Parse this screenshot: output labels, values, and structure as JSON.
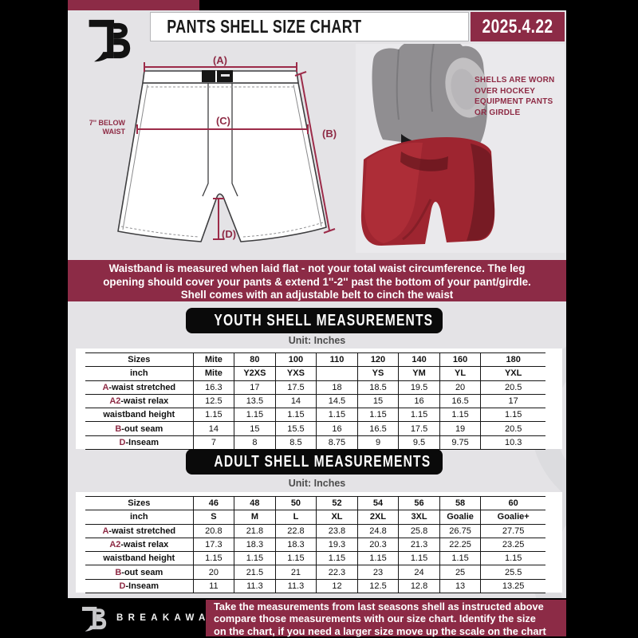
{
  "header": {
    "title": "PANTS SHELL SIZE CHART",
    "date": "2025.4.22"
  },
  "diagram": {
    "label_a": "(A)",
    "label_b": "(B)",
    "label_c": "(C)",
    "label_d": "(D)",
    "below_waist": "7'' BELOW\nWAIST"
  },
  "photo_note": "SHELLS ARE WORN\nOVER HOCKEY\nEQUIPMENT PANTS\nOR GIRDLE",
  "info_banner": "Waistband is measured when laid flat - not your total waist circumference. The leg\nopening should cover your pants & extend 1''-2'' past the bottom of your pant/girdle.\nShell comes with an adjustable belt to cinch the waist",
  "youth_section": {
    "title": "YOUTH SHELL MEASUREMENTS",
    "unit": "Unit: Inches"
  },
  "adult_section": {
    "title": "ADULT SHELL MEASUREMENTS",
    "unit": "Unit: Inches"
  },
  "tables": {
    "youth": {
      "rows": [
        {
          "prefix": "",
          "label": "Sizes",
          "header": true,
          "values": [
            "Mite",
            "80",
            "100",
            "110",
            "120",
            "140",
            "160",
            "180"
          ]
        },
        {
          "prefix": "",
          "label": "inch",
          "header": true,
          "values": [
            "Mite",
            "Y2XS",
            "YXS",
            "",
            "YS",
            "YM",
            "YL",
            "YXL"
          ]
        },
        {
          "prefix": "A",
          "label": "-waist stretched",
          "header": false,
          "values": [
            "16.3",
            "17",
            "17.5",
            "18",
            "18.5",
            "19.5",
            "20",
            "20.5"
          ]
        },
        {
          "prefix": "A2",
          "label": "-waist relax",
          "header": false,
          "values": [
            "12.5",
            "13.5",
            "14",
            "14.5",
            "15",
            "16",
            "16.5",
            "17"
          ]
        },
        {
          "prefix": "",
          "label": "waistband height",
          "header": false,
          "values": [
            "1.15",
            "1.15",
            "1.15",
            "1.15",
            "1.15",
            "1.15",
            "1.15",
            "1.15"
          ]
        },
        {
          "prefix": "B",
          "label": "-out seam",
          "header": false,
          "values": [
            "14",
            "15",
            "15.5",
            "16",
            "16.5",
            "17.5",
            "19",
            "20.5"
          ]
        },
        {
          "prefix": "D",
          "label": "-Inseam",
          "header": false,
          "values": [
            "7",
            "8",
            "8.5",
            "8.75",
            "9",
            "9.5",
            "9.75",
            "10.3"
          ]
        }
      ]
    },
    "adult": {
      "rows": [
        {
          "prefix": "",
          "label": "Sizes",
          "header": true,
          "values": [
            "46",
            "48",
            "50",
            "52",
            "54",
            "56",
            "58",
            "60"
          ]
        },
        {
          "prefix": "",
          "label": "inch",
          "header": true,
          "values": [
            "S",
            "M",
            "L",
            "XL",
            "2XL",
            "3XL",
            "Goalie",
            "Goalie+"
          ]
        },
        {
          "prefix": "A",
          "label": "-waist stretched",
          "header": false,
          "values": [
            "20.8",
            "21.8",
            "22.8",
            "23.8",
            "24.8",
            "25.8",
            "26.75",
            "27.75"
          ]
        },
        {
          "prefix": "A2",
          "label": "-waist relax",
          "header": false,
          "values": [
            "17.3",
            "18.3",
            "18.3",
            "19.3",
            "20.3",
            "21.3",
            "22.25",
            "23.25"
          ]
        },
        {
          "prefix": "",
          "label": "waistband height",
          "header": false,
          "values": [
            "1.15",
            "1.15",
            "1.15",
            "1.15",
            "1.15",
            "1.15",
            "1.15",
            "1.15"
          ]
        },
        {
          "prefix": "B",
          "label": "-out seam",
          "header": false,
          "values": [
            "20",
            "21.5",
            "21",
            "22.3",
            "23",
            "24",
            "25",
            "25.5"
          ]
        },
        {
          "prefix": "D",
          "label": "-Inseam",
          "header": false,
          "values": [
            "11",
            "11.3",
            "11.3",
            "12",
            "12.5",
            "12.8",
            "13",
            "13.25"
          ]
        }
      ]
    }
  },
  "footer": {
    "brand": "BREAKAWAY",
    "note": "Take the measurements from last seasons shell as instructed above\ncompare those measurements  with our size chart. Identify the size\non the chart, if you need a larger size move up the scale on the chart"
  },
  "colors": {
    "maroon": "#8c2b46",
    "page_bg": "#e4e3e6",
    "shell_red": "#9e2530",
    "table_line": "#161616"
  }
}
